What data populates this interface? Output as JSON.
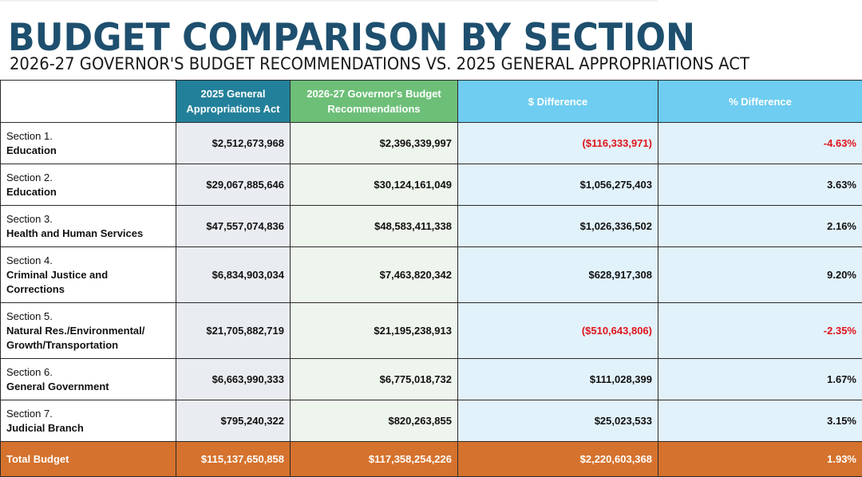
{
  "title": "BUDGET COMPARISON BY SECTION",
  "subtitle": "2026-27 GOVERNOR'S BUDGET RECOMMENDATIONS VS. 2025 GENERAL APPROPRIATIONS ACT",
  "colors": {
    "title": "#1e4f6e",
    "header_gaa": "#23809a",
    "header_gov": "#6dbf78",
    "header_diff": "#6ecdf0",
    "negative": "#e0141b",
    "total_row": "#d5722d"
  },
  "headers": {
    "col1_line1": "2025 General",
    "col1_line2": "Appropriations Act",
    "col2_line1": "2026-27 Governor's Budget",
    "col2_line2": "Recommendations",
    "col3": "$ Difference",
    "col4": "% Difference"
  },
  "rows": [
    {
      "num": "Section 1.",
      "name": "Education",
      "name2": "",
      "gaa": "$2,512,673,968",
      "gov": "$2,396,339,997",
      "diff": "($116,333,971)",
      "pct": "-4.63%",
      "negative": true
    },
    {
      "num": "Section 2.",
      "name": "Education",
      "name2": "",
      "gaa": "$29,067,885,646",
      "gov": "$30,124,161,049",
      "diff": "$1,056,275,403",
      "pct": "3.63%",
      "negative": false
    },
    {
      "num": "Section 3.",
      "name": "Health and Human Services",
      "name2": "",
      "gaa": "$47,557,074,836",
      "gov": "$48,583,411,338",
      "diff": "$1,026,336,502",
      "pct": "2.16%",
      "negative": false
    },
    {
      "num": "Section 4.",
      "name": "Criminal Justice and",
      "name2": "Corrections",
      "gaa": "$6,834,903,034",
      "gov": "$7,463,820,342",
      "diff": "$628,917,308",
      "pct": "9.20%",
      "negative": false
    },
    {
      "num": "Section 5.",
      "name": "Natural Res./Environmental/",
      "name2": "Growth/Transportation",
      "gaa": "$21,705,882,719",
      "gov": "$21,195,238,913",
      "diff": "($510,643,806)",
      "pct": "-2.35%",
      "negative": true
    },
    {
      "num": "Section 6.",
      "name": "General Government",
      "name2": "",
      "gaa": "$6,663,990,333",
      "gov": "$6,775,018,732",
      "diff": "$111,028,399",
      "pct": "1.67%",
      "negative": false
    },
    {
      "num": "Section 7.",
      "name": "Judicial Branch",
      "name2": "",
      "gaa": "$795,240,322",
      "gov": "$820,263,855",
      "diff": "$25,023,533",
      "pct": "3.15%",
      "negative": false
    }
  ],
  "total": {
    "label": "Total Budget",
    "gaa": "$115,137,650,858",
    "gov": "$117,358,254,226",
    "diff": "$2,220,603,368",
    "pct": "1.93%"
  }
}
